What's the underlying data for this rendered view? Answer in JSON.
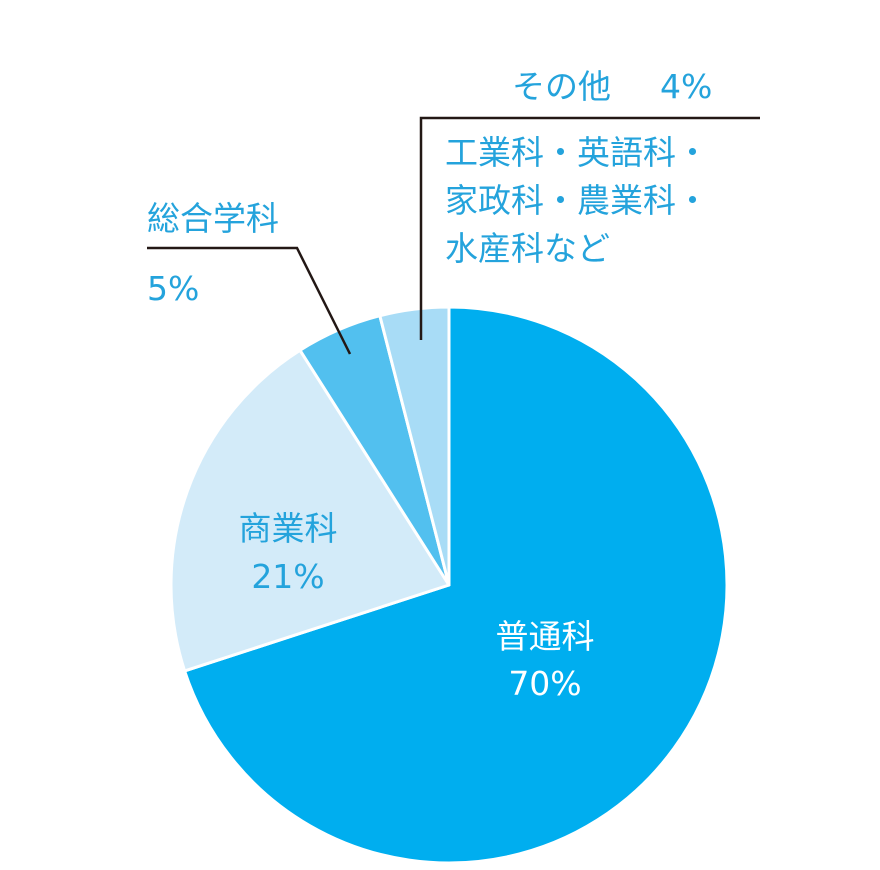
{
  "chart_data": {
    "type": "pie",
    "start": "12 o'clock",
    "direction": "clockwise",
    "slices": [
      {
        "name": "普通科",
        "value": 70,
        "value_label": "70%",
        "color": "#00aeef",
        "label_color": "#ffffff"
      },
      {
        "name": "商業科",
        "value": 21,
        "value_label": "21%",
        "color": "#d3ebf9",
        "label_color": "#24a3dc"
      },
      {
        "name": "総合学科",
        "value": 5,
        "value_label": "5%",
        "color": "#52c0ef",
        "label_color": "#24a3dc"
      },
      {
        "name": "その他",
        "value": 4,
        "value_label": "4%",
        "color": "#a8dcf6",
        "label_color": "#24a3dc",
        "note_lines": [
          "工業科・英語科・",
          "家政科・農業科・",
          "水産科など"
        ]
      }
    ]
  }
}
